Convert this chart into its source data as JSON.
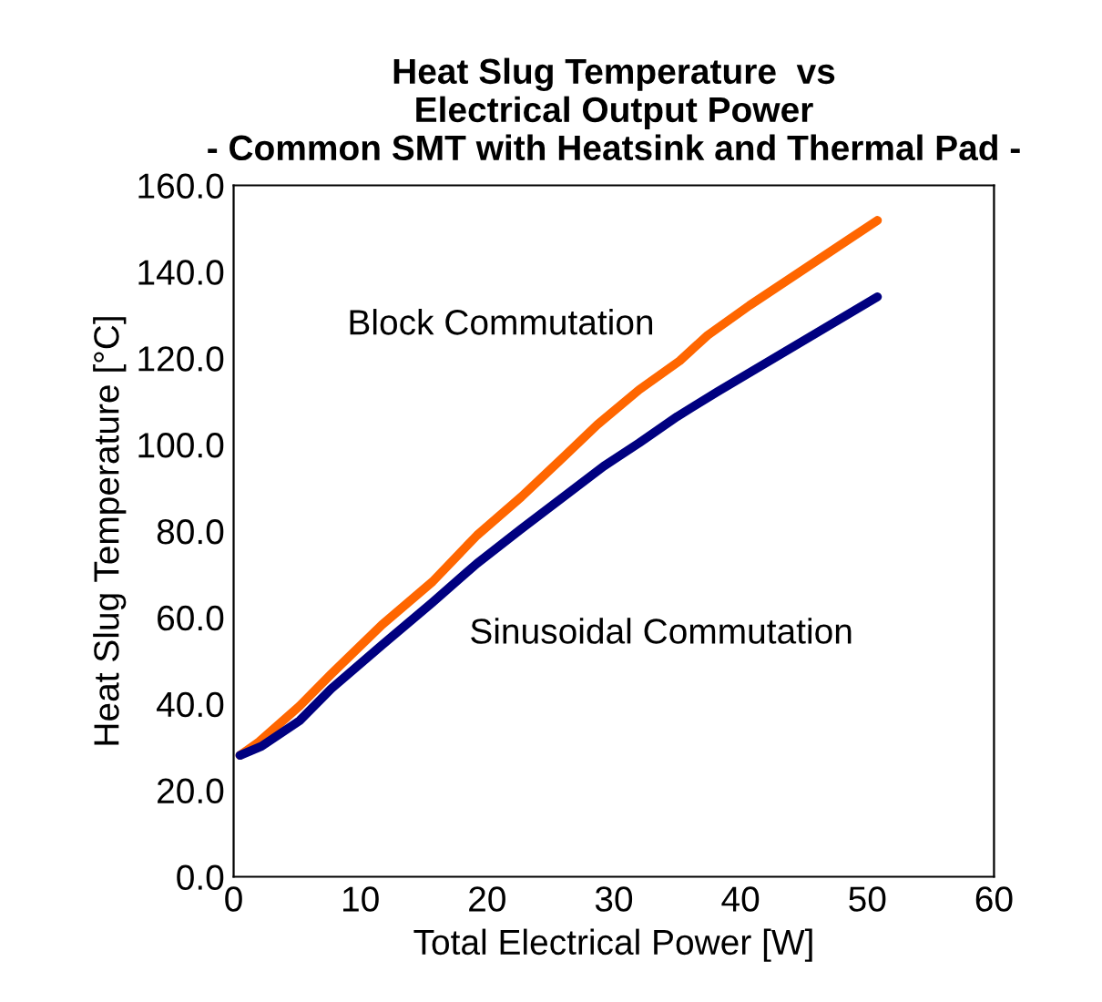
{
  "chart_data": {
    "type": "line",
    "title": "Heat Slug Temperature  vs\nElectrical Output Power\n- Common SMT with Heatsink and Thermal Pad -",
    "xlabel": "Total Electrical Power [W]",
    "ylabel": "Heat Slug Temperature [°C]",
    "xlim": [
      0,
      60
    ],
    "xticks": [
      0,
      10,
      20,
      30,
      40,
      50,
      60
    ],
    "ylim": [
      0,
      160
    ],
    "yticks": [
      {
        "value": 0,
        "label": "0.0"
      },
      {
        "value": 20,
        "label": "20.0"
      },
      {
        "value": 40,
        "label": "40.0"
      },
      {
        "value": 60,
        "label": "60.0"
      },
      {
        "value": 80,
        "label": "80.0"
      },
      {
        "value": 100,
        "label": "100.0"
      },
      {
        "value": 120,
        "label": "120.0"
      },
      {
        "value": 140,
        "label": "140.0"
      },
      {
        "value": 160,
        "label": "160.0"
      }
    ],
    "grid": false,
    "legend": false,
    "marker": "none",
    "line_style": "solid",
    "series": [
      {
        "name": "Block Commutation",
        "color": "#ff6600",
        "x": [
          0.5,
          2,
          5.2,
          7.7,
          11.7,
          15.7,
          19.2,
          22.7,
          26.2,
          28.7,
          32,
          35.2,
          37.4,
          40.7,
          50.8
        ],
        "values": [
          28.1,
          31.2,
          39.5,
          46.9,
          58.3,
          68.3,
          79.0,
          87.9,
          97.6,
          104.6,
          112.7,
          119.4,
          125.3,
          132.2,
          151.9
        ]
      },
      {
        "name": "Sinusoidal Commutation",
        "color": "#000080",
        "x": [
          0.5,
          2.2,
          5.2,
          7.7,
          11.7,
          15.7,
          19.2,
          22.7,
          26.2,
          29.2,
          32,
          35,
          38.2,
          50.8
        ],
        "values": [
          28.1,
          30.2,
          36.1,
          43.5,
          53.6,
          63.5,
          72.5,
          80.5,
          88.3,
          95,
          100.4,
          106.5,
          112.3,
          134.2
        ]
      }
    ]
  }
}
